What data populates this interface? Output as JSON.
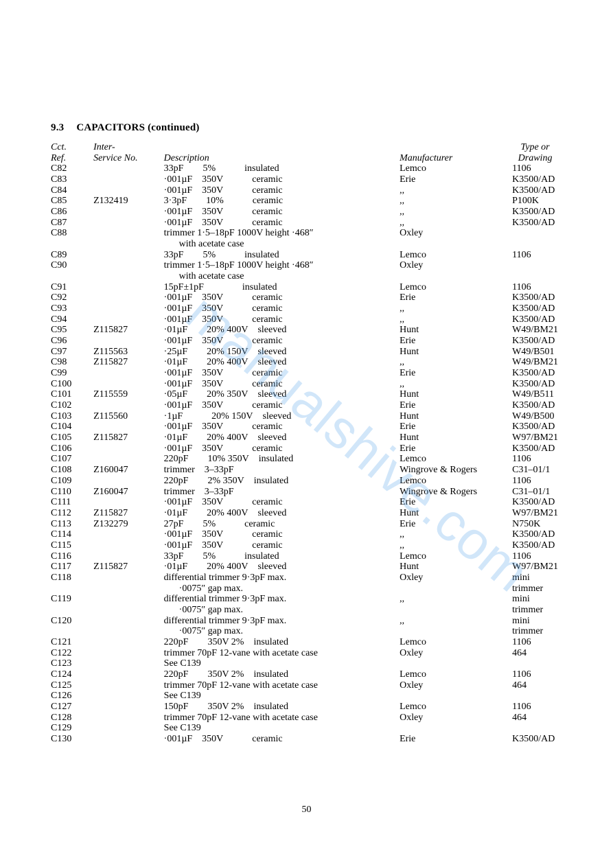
{
  "section": {
    "number": "9.3",
    "title": "CAPACITORS",
    "cont": "(continued)"
  },
  "pageNumber": "50",
  "watermark": "manualshive.com",
  "headers": {
    "cctTop": "Cct.",
    "cctBot": "Ref.",
    "svcTop": "Inter-",
    "svcBot": "Service No.",
    "desc": "Description",
    "mfr": "Manufacturer",
    "typTop": "Type or",
    "typBot": "Drawing"
  },
  "rows": [
    {
      "cct": "C82",
      "svc": "",
      "desc": "33pF  5%   insulated",
      "mfr": "Lemco",
      "typ": "1106"
    },
    {
      "cct": "C83",
      "svc": "",
      "desc": "·001µF 350V   ceramic",
      "mfr": "Erie",
      "typ": "K3500/AD"
    },
    {
      "cct": "C84",
      "svc": "",
      "desc": "·001µF 350V   ceramic",
      "mfr": ",,",
      "typ": "K3500/AD"
    },
    {
      "cct": "C85",
      "svc": "Z132419",
      "desc": "3·3pF  10%   ceramic",
      "mfr": ",,",
      "typ": "P100K"
    },
    {
      "cct": "C86",
      "svc": "",
      "desc": "·001µF 350V   ceramic",
      "mfr": ",,",
      "typ": "K3500/AD"
    },
    {
      "cct": "C87",
      "svc": "",
      "desc": "·001µF 350V   ceramic",
      "mfr": ",,",
      "typ": "K3500/AD"
    },
    {
      "cct": "C88",
      "svc": "",
      "desc": "trimmer 1·5–18pF 1000V height ·468″",
      "sub": "with acetate case",
      "mfr": "Oxley",
      "typ": ""
    },
    {
      "cct": "C89",
      "svc": "",
      "desc": "33pF  5%   insulated",
      "mfr": "Lemco",
      "typ": "1106"
    },
    {
      "cct": "C90",
      "svc": "",
      "desc": "trimmer 1·5–18pF 1000V height ·468″",
      "sub": "with acetate case",
      "mfr": "Oxley",
      "typ": ""
    },
    {
      "cct": "C91",
      "svc": "",
      "desc": "15pF±1pF    insulated",
      "mfr": "Lemco",
      "typ": "1106"
    },
    {
      "cct": "C92",
      "svc": "",
      "desc": "·001µF 350V   ceramic",
      "mfr": "Erie",
      "typ": "K3500/AD"
    },
    {
      "cct": "C93",
      "svc": "",
      "desc": "·001µF 350V   ceramic",
      "mfr": ",,",
      "typ": "K3500/AD"
    },
    {
      "cct": "C94",
      "svc": "",
      "desc": "·001µF 350V   ceramic",
      "mfr": ",,",
      "typ": "K3500/AD"
    },
    {
      "cct": "C95",
      "svc": "Z115827",
      "desc": "·01µF  20% 400V sleeved",
      "mfr": "Hunt",
      "typ": "W49/BM21"
    },
    {
      "cct": "C96",
      "svc": "",
      "desc": "·001µF 350V   ceramic",
      "mfr": "Erie",
      "typ": "K3500/AD"
    },
    {
      "cct": "C97",
      "svc": "Z115563",
      "desc": "·25µF  20% 150V sleeved",
      "mfr": "Hunt",
      "typ": "W49/B501"
    },
    {
      "cct": "C98",
      "svc": "Z115827",
      "desc": "·01µF  20% 400V sleeved",
      "mfr": ",,",
      "typ": "W49/BM21"
    },
    {
      "cct": "C99",
      "svc": "",
      "desc": "·001µF 350V   ceramic",
      "mfr": "Erie",
      "typ": "K3500/AD"
    },
    {
      "cct": "C100",
      "svc": "",
      "desc": "·001µF 350V   ceramic",
      "mfr": ",,",
      "typ": "K3500/AD"
    },
    {
      "cct": "C101",
      "svc": "Z115559",
      "desc": "·05µF  20% 350V sleeved",
      "mfr": "Hunt",
      "typ": "W49/B511"
    },
    {
      "cct": "C102",
      "svc": "",
      "desc": "·001µF 350V   ceramic",
      "mfr": "Erie",
      "typ": "K3500/AD"
    },
    {
      "cct": "C103",
      "svc": "Z115560",
      "desc": "·1µF   20% 150V sleeved",
      "mfr": "Hunt",
      "typ": "W49/B500"
    },
    {
      "cct": "C104",
      "svc": "",
      "desc": "·001µF 350V   ceramic",
      "mfr": "Erie",
      "typ": "K3500/AD"
    },
    {
      "cct": "C105",
      "svc": "Z115827",
      "desc": "·01µF  20% 400V sleeved",
      "mfr": "Hunt",
      "typ": "W97/BM21"
    },
    {
      "cct": "C106",
      "svc": "",
      "desc": "·001µF 350V   ceramic",
      "mfr": "Erie",
      "typ": "K3500/AD"
    },
    {
      "cct": "C107",
      "svc": "",
      "desc": "220pF  10% 350V insulated",
      "mfr": "Lemco",
      "typ": "1106"
    },
    {
      "cct": "C108",
      "svc": "Z160047",
      "desc": "trimmer 3–33pF",
      "mfr": "Wingrove & Rogers",
      "typ": "C31–01/1"
    },
    {
      "cct": "C109",
      "svc": "",
      "desc": "220pF  2% 350V insulated",
      "mfr": "Lemco",
      "typ": "1106"
    },
    {
      "cct": "C110",
      "svc": "Z160047",
      "desc": "trimmer 3–33pF",
      "mfr": "Wingrove & Rogers",
      "typ": "C31–01/1"
    },
    {
      "cct": "C111",
      "svc": "",
      "desc": "·001µF 350V   ceramic",
      "mfr": "Erie",
      "typ": "K3500/AD"
    },
    {
      "cct": "C112",
      "svc": "Z115827",
      "desc": "·01µF  20% 400V sleeved",
      "mfr": "Hunt",
      "typ": "W97/BM21"
    },
    {
      "cct": "C113",
      "svc": "Z132279",
      "desc": "27pF  5%   ceramic",
      "mfr": "Erie",
      "typ": "N750K"
    },
    {
      "cct": "C114",
      "svc": "",
      "desc": "·001µF 350V   ceramic",
      "mfr": ",,",
      "typ": "K3500/AD"
    },
    {
      "cct": "C115",
      "svc": "",
      "desc": "·001µF 350V   ceramic",
      "mfr": ",,",
      "typ": "K3500/AD"
    },
    {
      "cct": "C116",
      "svc": "",
      "desc": "33pF  5%   insulated",
      "mfr": "Lemco",
      "typ": "1106"
    },
    {
      "cct": "C117",
      "svc": "Z115827",
      "desc": "·01µF  20% 400V sleeved",
      "mfr": "Hunt",
      "typ": "W97/BM21"
    },
    {
      "cct": "C118",
      "svc": "",
      "desc": "differential trimmer 9·3pF max.",
      "sub": "·0075″ gap max.",
      "mfr": "Oxley",
      "typ": "mini",
      "typ2": "trimmer"
    },
    {
      "cct": "C119",
      "svc": "",
      "desc": "differential trimmer 9·3pF max.",
      "sub": "·0075″ gap max.",
      "mfr": ",,",
      "typ": "mini",
      "typ2": "trimmer"
    },
    {
      "cct": "C120",
      "svc": "",
      "desc": "differential trimmer 9·3pF max.",
      "sub": "·0075″ gap max.",
      "mfr": ",,",
      "typ": "mini",
      "typ2": "trimmer"
    },
    {
      "cct": "C121",
      "svc": "",
      "desc": "220pF  350V 2% insulated",
      "mfr": "Lemco",
      "typ": "1106"
    },
    {
      "cct": "C122",
      "svc": "",
      "desc": "trimmer 70pF 12-vane with acetate case",
      "mfr": "Oxley",
      "typ": "464"
    },
    {
      "cct": "C123",
      "svc": "",
      "desc": "See C139",
      "mfr": "",
      "typ": ""
    },
    {
      "cct": "C124",
      "svc": "",
      "desc": "220pF  350V 2% insulated",
      "mfr": "Lemco",
      "typ": "1106"
    },
    {
      "cct": "C125",
      "svc": "",
      "desc": "trimmer 70pF 12-vane with acetate case",
      "mfr": "Oxley",
      "typ": "464"
    },
    {
      "cct": "C126",
      "svc": "",
      "desc": "See C139",
      "mfr": "",
      "typ": ""
    },
    {
      "cct": "C127",
      "svc": "",
      "desc": "150pF  350V 2% insulated",
      "mfr": "Lemco",
      "typ": "1106"
    },
    {
      "cct": "C128",
      "svc": "",
      "desc": "trimmer 70pF 12-vane with acetate case",
      "mfr": "Oxley",
      "typ": "464"
    },
    {
      "cct": "C129",
      "svc": "",
      "desc": "See C139",
      "mfr": "",
      "typ": ""
    },
    {
      "cct": "C130",
      "svc": "",
      "desc": "·001µF 350V   ceramic",
      "mfr": "Erie",
      "typ": "K3500/AD"
    }
  ]
}
